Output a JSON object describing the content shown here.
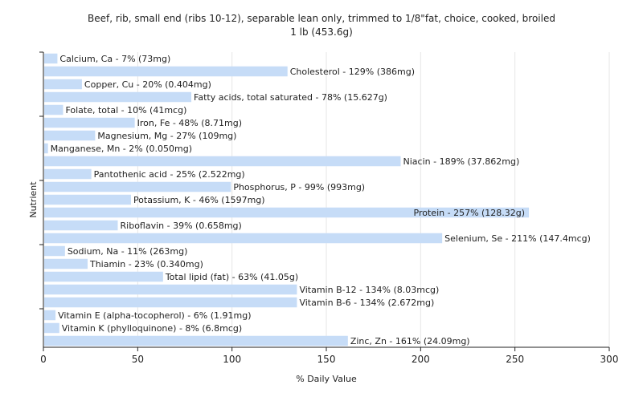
{
  "chart_data": {
    "type": "bar",
    "orientation": "horizontal",
    "title_line1": "Beef, rib, small end (ribs 10-12), separable lean only, trimmed to 1/8\"fat, choice, cooked, broiled",
    "title_line2": "1 lb (453.6g)",
    "xlabel": "% Daily Value",
    "ylabel": "Nutrient",
    "xlim": [
      0,
      300
    ],
    "xticks": [
      "0",
      "50",
      "100",
      "150",
      "200",
      "250",
      "300"
    ],
    "grid": true,
    "bar_color": "#c6dcf7",
    "categories": [
      "Calcium, Ca",
      "Cholesterol",
      "Copper, Cu",
      "Fatty acids, total saturated",
      "Folate, total",
      "Iron, Fe",
      "Magnesium, Mg",
      "Manganese, Mn",
      "Niacin",
      "Pantothenic acid",
      "Phosphorus, P",
      "Potassium, K",
      "Protein",
      "Riboflavin",
      "Selenium, Se",
      "Sodium, Na",
      "Thiamin",
      "Total lipid (fat)",
      "Vitamin B-12",
      "Vitamin B-6",
      "Vitamin E (alpha-tocopherol)",
      "Vitamin K (phylloquinone)",
      "Zinc, Zn"
    ],
    "values": [
      7,
      129,
      20,
      78,
      10,
      48,
      27,
      2,
      189,
      25,
      99,
      46,
      257,
      39,
      211,
      11,
      23,
      63,
      134,
      134,
      6,
      8,
      161
    ],
    "labels": [
      "Calcium, Ca - 7% (73mg)",
      "Cholesterol - 129% (386mg)",
      "Copper, Cu - 20% (0.404mg)",
      "Fatty acids, total saturated - 78% (15.627g)",
      "Folate, total - 10% (41mcg)",
      "Iron, Fe - 48% (8.71mg)",
      "Magnesium, Mg - 27% (109mg)",
      "Manganese, Mn - 2% (0.050mg)",
      "Niacin - 189% (37.862mg)",
      "Pantothenic acid - 25% (2.522mg)",
      "Phosphorus, P - 99% (993mg)",
      "Potassium, K - 46% (1597mg)",
      "Protein - 257% (128.32g)",
      "Riboflavin - 39% (0.658mg)",
      "Selenium, Se - 211% (147.4mcg)",
      "Sodium, Na - 11% (263mg)",
      "Thiamin - 23% (0.340mg)",
      "Total lipid (fat) - 63% (41.05g)",
      "Vitamin B-12 - 134% (8.03mcg)",
      "Vitamin B-6 - 134% (2.672mg)",
      "Vitamin E (alpha-tocopherol) - 6% (1.91mg)",
      "Vitamin K (phylloquinone) - 8% (6.8mcg)",
      "Zinc, Zn - 161% (24.09mg)"
    ]
  }
}
